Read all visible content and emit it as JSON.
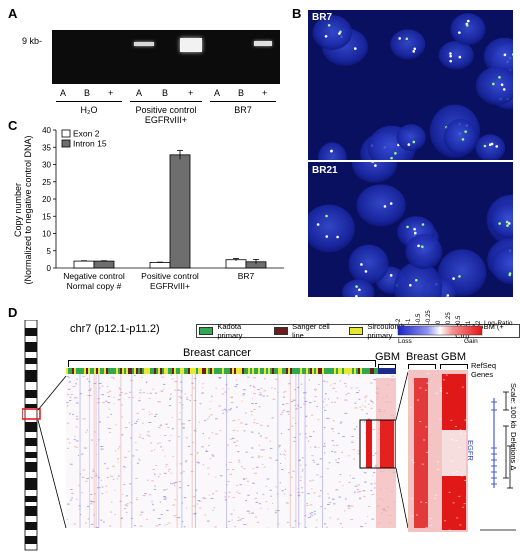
{
  "panels": {
    "a": {
      "letter": "A",
      "marker": "9 kb-",
      "lanes": [
        "A",
        "B",
        "+",
        "A",
        "B",
        "+",
        "A",
        "B",
        "+"
      ],
      "groups": [
        "H₂O",
        "Positive control\nEGFRvIII+",
        "BR7"
      ]
    },
    "b": {
      "letter": "B",
      "images": [
        "BR7",
        "BR21"
      ]
    },
    "c": {
      "letter": "C",
      "chart_data": {
        "type": "bar",
        "ylabel_line1": "Copy number",
        "ylabel_line2": "(Normalized to negative control DNA)",
        "ylim": [
          0,
          40
        ],
        "yticks": [
          0,
          5,
          10,
          15,
          20,
          25,
          30,
          35,
          40
        ],
        "categories": [
          "Negative control\nNormal copy #",
          "Positive control\nEGFRvIII+",
          "BR7"
        ],
        "series": [
          {
            "name": "Exon 2",
            "color": "#ffffff",
            "values": [
              2.0,
              1.6,
              2.4
            ],
            "errors": [
              0.1,
              0.1,
              0.35
            ]
          },
          {
            "name": "Intron 15",
            "color": "#6e6e6e",
            "values": [
              2.0,
              32.8,
              1.8
            ],
            "errors": [
              0.1,
              1.3,
              0.7
            ]
          }
        ],
        "legend": "top-left"
      }
    },
    "d": {
      "letter": "D",
      "title": "chr7 (p12.1-p11.2)",
      "legend_items": [
        {
          "label": "Kadota primary",
          "color": "#2fa84f"
        },
        {
          "label": "Sanger cell line",
          "color": "#6b1e1e"
        },
        {
          "label": "Sircoulomb primary",
          "color": "#e8e830"
        },
        {
          "label": "TCGA GBM (+ Ctrl)",
          "color": "#1c2b8c"
        }
      ],
      "scale_ticks": [
        "-2",
        "-1",
        "-0.5",
        "-0.25",
        "0",
        "0.25",
        "0.5",
        "1",
        "2"
      ],
      "scale_unit": "Log₂Ratio",
      "scale_loss": "Loss",
      "scale_gain": "Gain",
      "group_breast": "Breast cancer",
      "group_gbm": "GBM",
      "zoom_breast": "Breast",
      "zoom_gbm": "GBM",
      "refseq": "RefSeq Genes",
      "gene": "EGFR",
      "scale_label": "Scale: 100 kb",
      "deletions_label": "Deletions Δ"
    }
  }
}
